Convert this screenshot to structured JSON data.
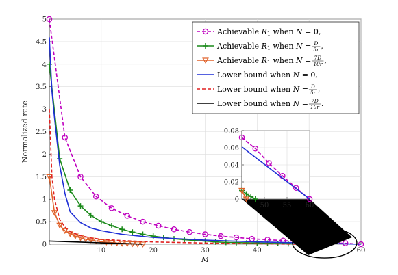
{
  "chart_data": [
    {
      "type": "line",
      "xlabel": "M",
      "ylabel": "Normalized rate",
      "xlim": [
        0,
        60
      ],
      "ylim": [
        0,
        5
      ],
      "xticks": [
        "10",
        "20",
        "30",
        "40",
        "50",
        "60"
      ],
      "yticks": [
        "0",
        "0.5",
        "1",
        "1.5",
        "2",
        "2.5",
        "3",
        "3.5",
        "4",
        "4.5",
        "5"
      ],
      "grid": true,
      "legend_position": "top-right",
      "series": [
        {
          "name": "Achievable R1 when N = 0,",
          "legend": {
            "pre": "Achievable ",
            "italic": "R",
            "sub": "1",
            "post": " when ",
            "eq": "N = 0,",
            "frac": null
          },
          "color": "#bf00bf",
          "dash": "5,3",
          "marker": "circle",
          "x": [
            0,
            3,
            6,
            9,
            12,
            15,
            18,
            21,
            24,
            27,
            30,
            33,
            36,
            39,
            42,
            45,
            48,
            51,
            54,
            57,
            60
          ],
          "y": [
            5.0,
            2.37,
            1.5,
            1.06,
            0.8,
            0.63,
            0.5,
            0.41,
            0.33,
            0.27,
            0.22,
            0.18,
            0.15,
            0.12,
            0.1,
            0.08,
            0.06,
            0.05,
            0.03,
            0.02,
            0.0
          ]
        },
        {
          "name": "Achievable R1 when N = D/5r,",
          "legend": {
            "pre": "Achievable ",
            "italic": "R",
            "sub": "1",
            "post": " when ",
            "eq": "N = ",
            "frac": [
              "D",
              "5r"
            ],
            "tail": ","
          },
          "color": "#1a8a1a",
          "dash": "",
          "marker": "plus",
          "x": [
            0,
            2,
            4,
            6,
            8,
            10,
            12,
            14,
            16,
            18,
            20,
            22,
            24,
            26,
            28,
            30,
            32,
            34,
            36,
            38,
            40,
            42,
            44,
            46,
            48
          ],
          "y": [
            4.0,
            1.9,
            1.2,
            0.85,
            0.64,
            0.5,
            0.41,
            0.33,
            0.27,
            0.22,
            0.18,
            0.15,
            0.12,
            0.1,
            0.08,
            0.07,
            0.05,
            0.04,
            0.035,
            0.03,
            0.025,
            0.02,
            0.015,
            0.01,
            0.0
          ]
        },
        {
          "name": "Achievable R1 when N = 7D/10r,",
          "legend": {
            "pre": "Achievable ",
            "italic": "R",
            "sub": "1",
            "post": " when ",
            "eq": "N = ",
            "frac": [
              "7D",
              "10r"
            ],
            "tail": ","
          },
          "color": "#e0622a",
          "dash": "",
          "marker": "triangle-down",
          "x": [
            0,
            1,
            2,
            3,
            4,
            5,
            6,
            7,
            8,
            9,
            10,
            11,
            12,
            13,
            14,
            15,
            16,
            17,
            18
          ],
          "y": [
            1.5,
            0.7,
            0.42,
            0.3,
            0.23,
            0.18,
            0.14,
            0.11,
            0.09,
            0.07,
            0.055,
            0.045,
            0.035,
            0.025,
            0.018,
            0.012,
            0.008,
            0.004,
            0.0
          ]
        },
        {
          "name": "Lower bound when N = 0,",
          "legend": {
            "pre": "Lower bound when ",
            "italic": null,
            "eq": "N = 0,",
            "frac": null
          },
          "color": "#1f2fd6",
          "dash": "",
          "marker": "none",
          "x": [
            0,
            0.5,
            1,
            2,
            3,
            4,
            6,
            8,
            10,
            14,
            20,
            30,
            40,
            50,
            60
          ],
          "y": [
            4.6,
            3.4,
            2.8,
            1.75,
            1.13,
            0.72,
            0.48,
            0.36,
            0.3,
            0.22,
            0.15,
            0.09,
            0.05,
            0.025,
            0.0
          ]
        },
        {
          "name": "Lower bound when N = D/5r,",
          "legend": {
            "pre": "Lower bound when ",
            "italic": null,
            "eq": "N = ",
            "frac": [
              "D",
              "5r"
            ],
            "tail": ","
          },
          "color": "#e02020",
          "dash": "5,3",
          "marker": "none",
          "x": [
            0,
            0.5,
            1,
            2,
            3,
            4,
            6,
            8,
            10,
            14,
            20,
            30,
            40,
            48
          ],
          "y": [
            3.0,
            1.5,
            1.0,
            0.55,
            0.38,
            0.28,
            0.19,
            0.14,
            0.11,
            0.08,
            0.05,
            0.025,
            0.01,
            0.0
          ]
        },
        {
          "name": "Lower bound when N = 7D/10r.",
          "legend": {
            "pre": "Lower bound when ",
            "italic": null,
            "eq": "N = ",
            "frac": [
              "7D",
              "10r"
            ],
            "tail": "."
          },
          "color": "#000000",
          "dash": "",
          "marker": "none",
          "x": [
            0,
            5,
            10,
            15,
            18
          ],
          "y": [
            0.07,
            0.05,
            0.03,
            0.012,
            0.0
          ]
        }
      ],
      "highlight": {
        "shape": "ellipse",
        "x_center": 53,
        "y_center": 0.03,
        "note": "zoomed region"
      }
    },
    {
      "type": "line",
      "role": "inset",
      "xlim": [
        45,
        60
      ],
      "ylim": [
        0,
        0.08
      ],
      "xticks": [
        "50",
        "55",
        "60"
      ],
      "yticks": [
        "0",
        "0.02",
        "0.04",
        "0.06",
        "0.08"
      ],
      "grid": true,
      "series": [
        {
          "ref": "Achievable R1 when N = 0,",
          "color": "#bf00bf",
          "dash": "5,3",
          "marker": "circle",
          "x": [
            45,
            48,
            51,
            54,
            57,
            60
          ],
          "y": [
            0.072,
            0.059,
            0.042,
            0.027,
            0.013,
            0.0
          ]
        },
        {
          "ref": "Lower bound when N = 0,",
          "color": "#1f2fd6",
          "dash": "",
          "marker": "none",
          "x": [
            45,
            60
          ],
          "y": [
            0.061,
            0.0
          ]
        },
        {
          "ref": "Achievable R1 when N = D/5r,",
          "color": "#1a8a1a",
          "dash": "",
          "marker": "plus",
          "x": [
            45,
            46,
            47,
            48
          ],
          "y": [
            0.01,
            0.006,
            0.003,
            0.0
          ]
        },
        {
          "ref": "Achievable R1 when N = 7D/10r,",
          "color": "#e0622a",
          "dash": "",
          "marker": "triangle-down",
          "x": [
            45,
            46
          ],
          "y": [
            0.01,
            0.0
          ]
        }
      ]
    }
  ]
}
